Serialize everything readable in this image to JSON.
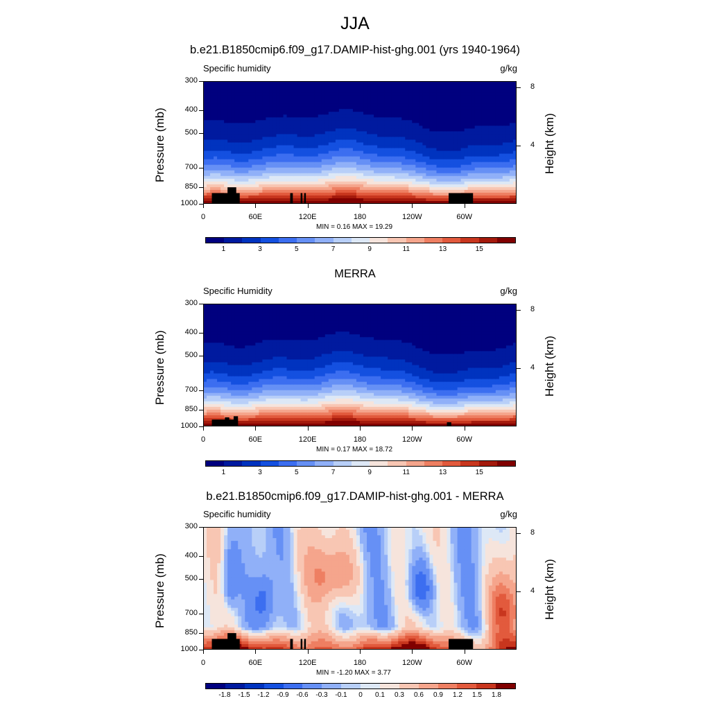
{
  "title": "JJA",
  "panels": [
    {
      "title": "b.e21.B1850cmip6.f09_g17.DAMIP-hist-ghg.001 (yrs 1940-1964)",
      "var_label": "Specific humidity",
      "units": "g/kg",
      "minmax": "MIN =   0.16  MAX =  19.29",
      "ylabel": "Pressure (mb)",
      "ylabel2": "Height (km)",
      "xticks": [
        "0",
        "60E",
        "120E",
        "180",
        "120W",
        "60W"
      ],
      "pticks": [
        "300",
        "400",
        "500",
        "700",
        "850",
        "1000"
      ],
      "hticks": [
        "8",
        "4"
      ],
      "cb_labels": [
        "1",
        "3",
        "5",
        "7",
        "9",
        "11",
        "13",
        "15"
      ]
    },
    {
      "title": "MERRA",
      "var_label": "Specific Humidity",
      "units": "g/kg",
      "minmax": "MIN =   0.17  MAX =  18.72",
      "ylabel": "Pressure (mb)",
      "ylabel2": "Height (km)",
      "xticks": [
        "0",
        "60E",
        "120E",
        "180",
        "120W",
        "60W"
      ],
      "pticks": [
        "300",
        "400",
        "500",
        "700",
        "850",
        "1000"
      ],
      "hticks": [
        "8",
        "4"
      ],
      "cb_labels": [
        "1",
        "3",
        "5",
        "7",
        "9",
        "11",
        "13",
        "15"
      ]
    },
    {
      "title": "b.e21.B1850cmip6.f09_g17.DAMIP-hist-ghg.001 - MERRA",
      "var_label": "Specific humidity",
      "units": "g/kg",
      "minmax": "MIN =  -1.20  MAX =   3.77",
      "ylabel": "Pressure (mb)",
      "ylabel2": "Height (km)",
      "xticks": [
        "0",
        "60E",
        "120E",
        "180",
        "120W",
        "60W"
      ],
      "pticks": [
        "300",
        "400",
        "500",
        "700",
        "850",
        "1000"
      ],
      "hticks": [
        "8",
        "4"
      ],
      "cb_labels": [
        "-1.8",
        "-1.5",
        "-1.2",
        "-0.9",
        "-0.6",
        "-0.3",
        "-0.1",
        "0",
        "0.1",
        "0.3",
        "0.6",
        "0.9",
        "1.2",
        "1.5",
        "1.8"
      ]
    }
  ],
  "chart_data": [
    {
      "type": "heatmap",
      "title": "b.e21.B1850cmip6.f09_g17.DAMIP-hist-ghg.001 (yrs 1940-1964)",
      "xlabel": "",
      "ylabel": "Pressure (mb)",
      "ylabel_right": "Height (km)",
      "xlim": [
        0,
        360
      ],
      "ylim": [
        1000,
        300
      ],
      "colorbar_levels": [
        0,
        1,
        2,
        3,
        4,
        5,
        6,
        7,
        8,
        9,
        10,
        11,
        12,
        13,
        14,
        15,
        16
      ],
      "min": 0.16,
      "max": 19.29,
      "colors": [
        "#00007f",
        "#001a9f",
        "#0033bf",
        "#1450e0",
        "#3c6ef0",
        "#6690f5",
        "#90b0f8",
        "#b8cff8",
        "#dde8f6",
        "#f6e4dc",
        "#f8c6b3",
        "#f5a58c",
        "#ee7f62",
        "#e25a3d",
        "#c8361e",
        "#a41a0c",
        "#800000"
      ]
    },
    {
      "type": "heatmap",
      "title": "MERRA",
      "xlabel": "",
      "ylabel": "Pressure (mb)",
      "ylabel_right": "Height (km)",
      "xlim": [
        0,
        360
      ],
      "ylim": [
        1000,
        300
      ],
      "colorbar_levels": [
        0,
        1,
        2,
        3,
        4,
        5,
        6,
        7,
        8,
        9,
        10,
        11,
        12,
        13,
        14,
        15,
        16
      ],
      "min": 0.17,
      "max": 18.72,
      "colors": [
        "#00007f",
        "#001a9f",
        "#0033bf",
        "#1450e0",
        "#3c6ef0",
        "#6690f5",
        "#90b0f8",
        "#b8cff8",
        "#dde8f6",
        "#f6e4dc",
        "#f8c6b3",
        "#f5a58c",
        "#ee7f62",
        "#e25a3d",
        "#c8361e",
        "#a41a0c",
        "#800000"
      ]
    },
    {
      "type": "heatmap",
      "title": "b.e21.B1850cmip6.f09_g17.DAMIP-hist-ghg.001 - MERRA",
      "xlabel": "",
      "ylabel": "Pressure (mb)",
      "ylabel_right": "Height (km)",
      "xlim": [
        0,
        360
      ],
      "ylim": [
        1000,
        300
      ],
      "colorbar_levels": [
        -1.8,
        -1.5,
        -1.2,
        -0.9,
        -0.6,
        -0.3,
        -0.1,
        0,
        0.1,
        0.3,
        0.6,
        0.9,
        1.2,
        1.5,
        1.8
      ],
      "min": -1.2,
      "max": 3.77,
      "colors": [
        "#00007f",
        "#001a9f",
        "#0033bf",
        "#1450e0",
        "#3c6ef0",
        "#6690f5",
        "#90b0f8",
        "#b8cff8",
        "#dde8f6",
        "#f6e4dc",
        "#f8c6b3",
        "#f5a58c",
        "#ee7f62",
        "#e25a3d",
        "#c8361e",
        "#800000"
      ]
    }
  ]
}
